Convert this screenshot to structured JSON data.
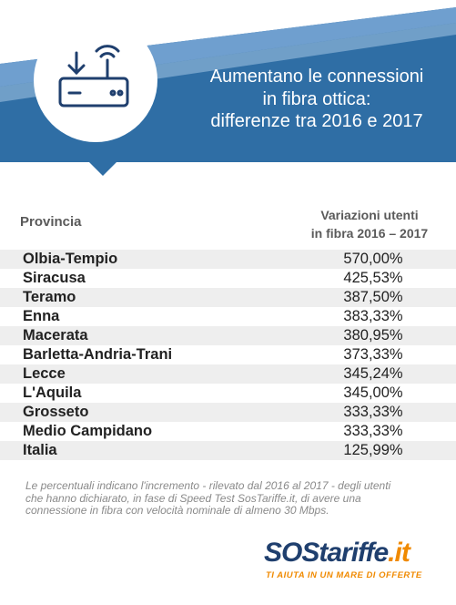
{
  "header": {
    "title": [
      "Aumentano le connessioni",
      "in fibra ottica:",
      "differenze tra 2016 e 2017"
    ]
  },
  "table": {
    "columns": [
      "Provincia",
      [
        "Variazioni utenti",
        "in fibra 2016 – 2017"
      ]
    ],
    "rows": [
      [
        "Olbia-Tempio",
        "570,00%"
      ],
      [
        "Siracusa",
        "425,53%"
      ],
      [
        "Teramo",
        "387,50%"
      ],
      [
        "Enna",
        "383,33%"
      ],
      [
        "Macerata",
        "380,95%"
      ],
      [
        "Barletta-Andria-Trani",
        "373,33%"
      ],
      [
        "Lecce",
        "345,24%"
      ],
      [
        "L'Aquila",
        "345,00%"
      ],
      [
        "Grosseto",
        "333,33%"
      ],
      [
        "Medio Campidano",
        "333,33%"
      ],
      [
        "Italia",
        "125,99%"
      ]
    ]
  },
  "footnote": [
    "Le percentuali indicano l'incremento - rilevato dal 2016 al 2017 - degli utenti",
    "che hanno dichiarato, in fase di Speed Test SosTariffe.it, di avere una",
    "connessione in fibra con velocità nominale di almeno 30 Mbps."
  ],
  "logo": {
    "parts": [
      "SOS",
      "tariffe",
      ".it"
    ],
    "tagline": "TI AIUTA IN UN MARE DI OFFERTE"
  }
}
